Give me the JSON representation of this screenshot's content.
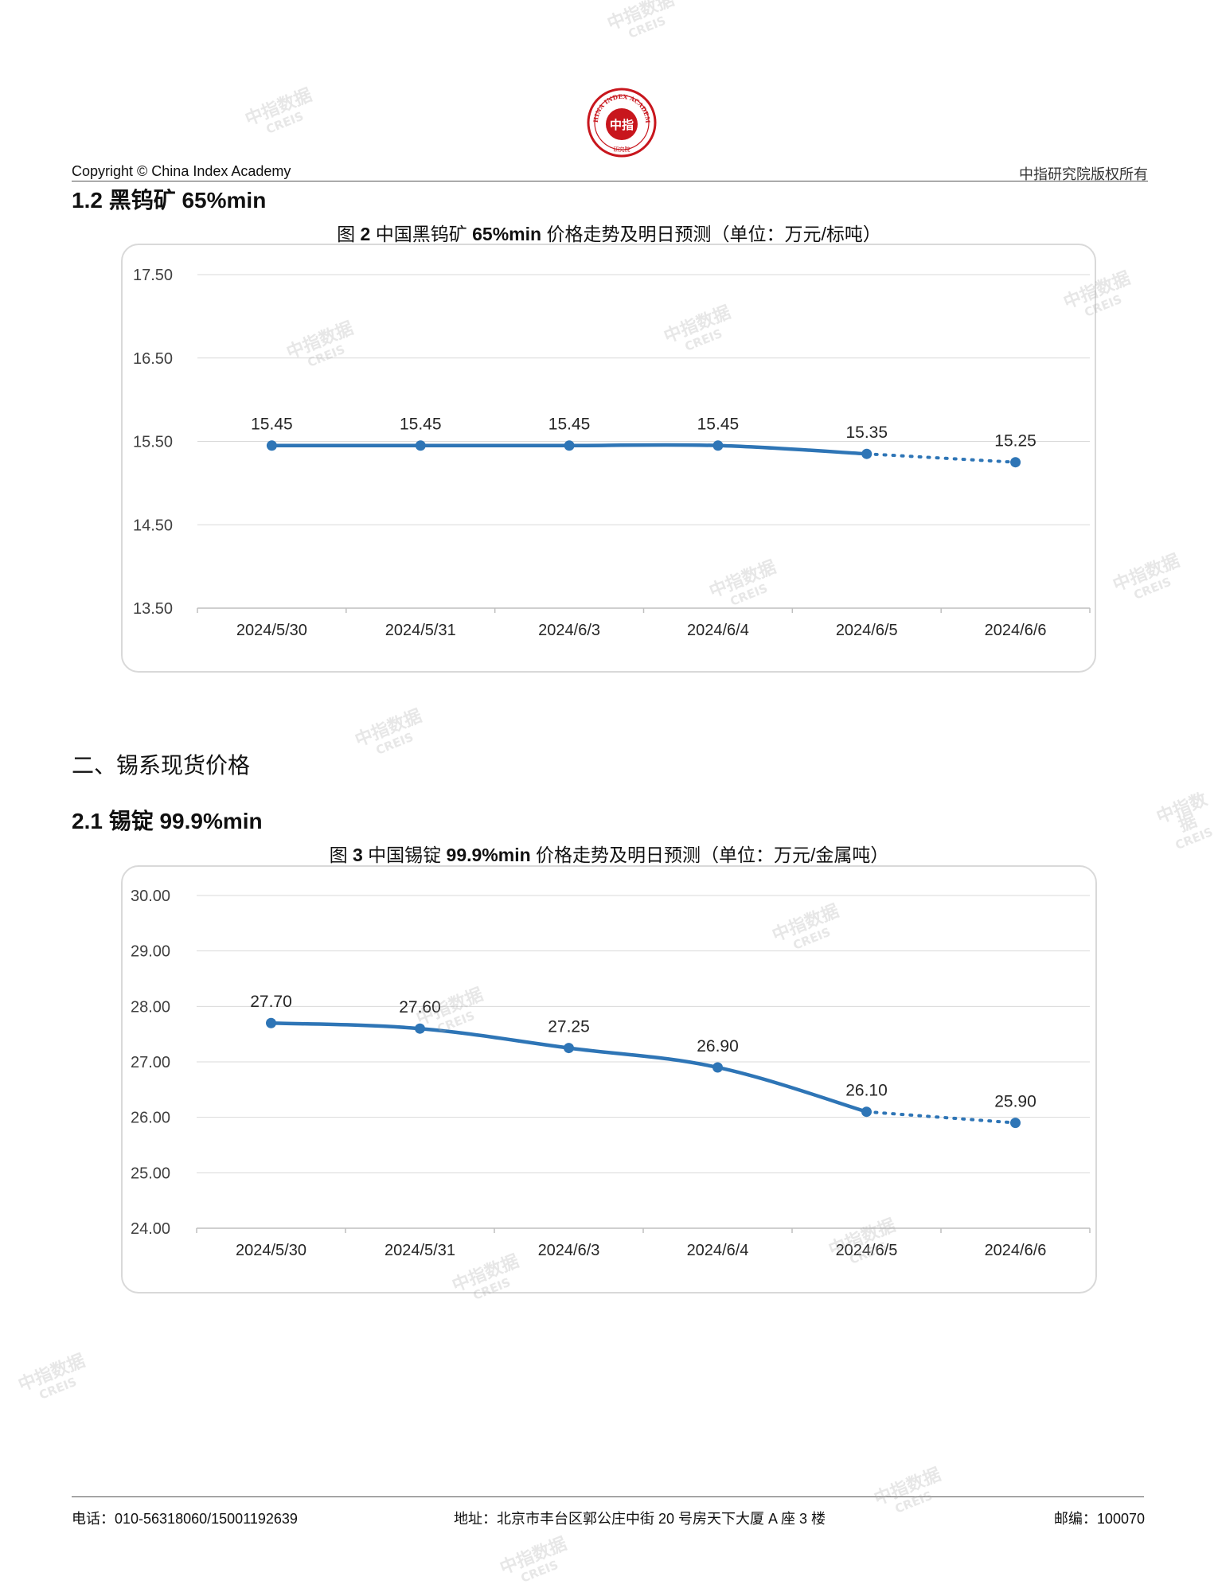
{
  "header": {
    "copyright": "Copyright © China Index Academy",
    "rights": "中指研究院版权所有",
    "logo_center_text": "中指",
    "logo_ring_text": "CHINA INDEX ACADEMY",
    "logo_bottom_text": "研究院"
  },
  "section_1_2": {
    "title": "1.2 黑钨矿 65%min",
    "figure_prefix": "图 ",
    "figure_num": "2",
    "figure_mid": " 中国黑钨矿 ",
    "figure_bold": "65%min",
    "figure_suffix": " 价格走势及明日预测（单位：万元/标吨）"
  },
  "section_2": {
    "title": "二、锡系现货价格"
  },
  "section_2_1": {
    "title": "2.1 锡锭 99.9%min",
    "figure_prefix": "图 ",
    "figure_num": "3",
    "figure_mid": " 中国锡锭 ",
    "figure_bold": "99.9%min",
    "figure_suffix": " 价格走势及明日预测（单位：万元/金属吨）"
  },
  "chart_data": [
    {
      "type": "line",
      "categories": [
        "2024/5/30",
        "2024/5/31",
        "2024/6/3",
        "2024/6/4",
        "2024/6/5",
        "2024/6/6"
      ],
      "values": [
        15.45,
        15.45,
        15.45,
        15.45,
        15.35,
        15.25
      ],
      "value_labels": [
        "15.45",
        "15.45",
        "15.45",
        "15.45",
        "15.35",
        "15.25"
      ],
      "forecast_from_index": 4,
      "ylim": [
        13.5,
        17.5
      ],
      "yticks": [
        17.5,
        16.5,
        15.5,
        14.5,
        13.5
      ],
      "ytick_labels": [
        "17.50",
        "16.50",
        "15.50",
        "14.50",
        "13.50"
      ],
      "grid": true,
      "line_color": "#2e75b6"
    },
    {
      "type": "line",
      "categories": [
        "2024/5/30",
        "2024/5/31",
        "2024/6/3",
        "2024/6/4",
        "2024/6/5",
        "2024/6/6"
      ],
      "values": [
        27.7,
        27.6,
        27.25,
        26.9,
        26.1,
        25.9
      ],
      "value_labels": [
        "27.70",
        "27.60",
        "27.25",
        "26.90",
        "26.10",
        "25.90"
      ],
      "forecast_from_index": 4,
      "ylim": [
        24,
        30
      ],
      "yticks": [
        30,
        29,
        28,
        27,
        26,
        25,
        24
      ],
      "ytick_labels": [
        "30.00",
        "29.00",
        "28.00",
        "27.00",
        "26.00",
        "25.00",
        "24.00"
      ],
      "grid": true,
      "line_color": "#2e75b6"
    }
  ],
  "footer": {
    "phone": "电话：010-56318060/15001192639",
    "address": "地址：北京市丰台区郭公庄中街 20 号房天下大厦 A 座 3 楼",
    "postcode": "邮编：100070"
  },
  "watermark": {
    "cn": "中指数据",
    "en": "CREIS"
  },
  "colors": {
    "accent": "#2e75b6",
    "logo_red": "#c8161d",
    "grid": "#d9d9d9"
  }
}
